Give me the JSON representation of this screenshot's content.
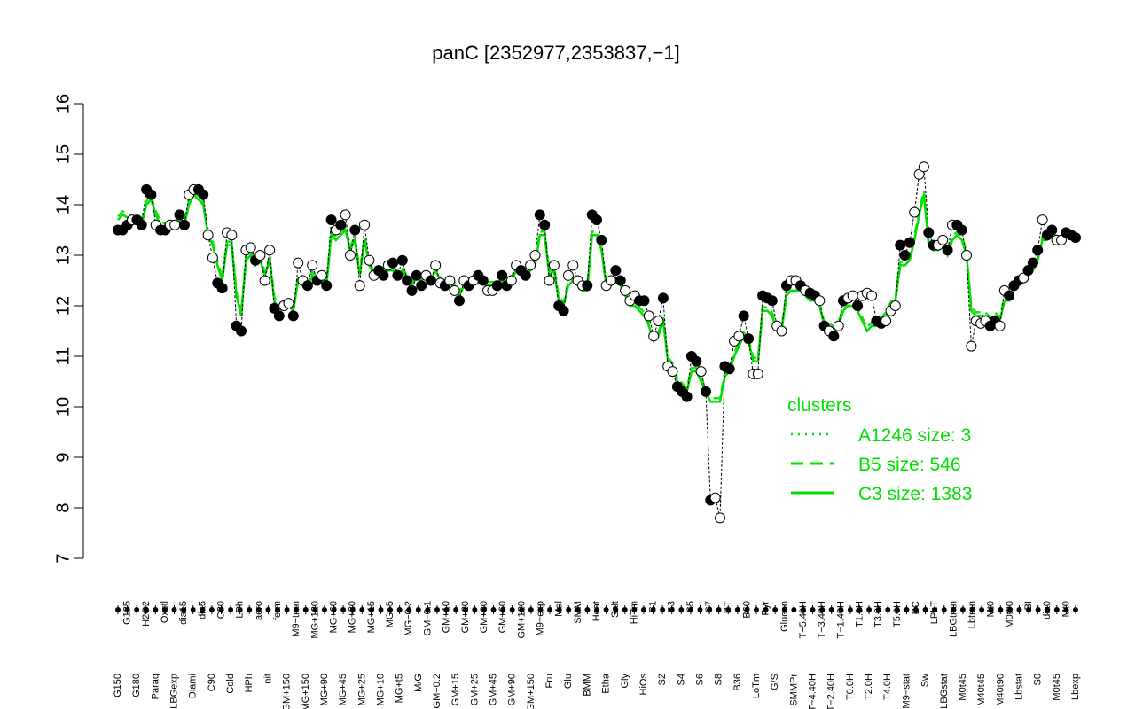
{
  "chart_data": {
    "type": "line",
    "title": "panC [2352977,2353837,−1]",
    "ylim": [
      7,
      16
    ],
    "yticks": [
      7,
      8,
      9,
      10,
      11,
      12,
      13,
      14,
      15,
      16
    ],
    "xlabels_top": [
      "G150",
      "G135",
      "G180",
      "H2O2",
      "Paraq",
      "Oxctl",
      "LBGexp",
      "dia15",
      "Diami",
      "dia5",
      "C90",
      "C30",
      "Cold",
      "LPh",
      "HPh",
      "aero",
      "nit",
      "ferm",
      "GM+150",
      "M9−tran",
      "MG+150",
      "MG+120",
      "MG+90",
      "MG+60",
      "MG+45",
      "MG+30",
      "MG+25",
      "MG+15",
      "MG+10",
      "MG+5",
      "MG+t5",
      "MG−0.2",
      "M/G",
      "GM−0.1",
      "GM−0.2",
      "GM+10",
      "GM+15",
      "GM+20",
      "GM+25",
      "GM+30",
      "GM+45",
      "GM+60",
      "GM+90",
      "GM+120",
      "GM+150",
      "M9−exp",
      "Fru",
      "Mal",
      "Glu",
      "SMM",
      "BMM",
      "Heat",
      "Etha",
      "Salt",
      "Gly",
      "HiTm",
      "HiOs",
      "S1",
      "S2",
      "S3",
      "S4",
      "S5",
      "S6",
      "S7",
      "S8",
      "BT",
      "B36",
      "B60",
      "LoTm",
      "Pyr",
      "G/S",
      "Glucon",
      "SMMPr",
      "T−5.40H",
      "T−4.40H",
      "T−3.40H",
      "T−2.40H",
      "T−1.40H",
      "T0.0H",
      "T1.0H",
      "T2.0H",
      "T3.0H",
      "T4.0H",
      "T5.0H",
      "M9−stat",
      "BC",
      "Sw",
      "LPhT",
      "LBGstat",
      "LBGtran",
      "M0t45",
      "Lbtran",
      "M40t45",
      "Mt0",
      "M40t90",
      "M0t90",
      "Lbstat",
      "BI",
      "S0",
      "dia0",
      "M0t45",
      "Mt0",
      "Lbexp"
    ],
    "series": [
      {
        "name": "A1246 size: 3",
        "style": "dotted",
        "color": "#00e000"
      },
      {
        "name": "B5 size: 546",
        "style": "dashed",
        "color": "#00e000"
      },
      {
        "name": "C3 size: 1383",
        "style": "solid",
        "color": "#00e000"
      }
    ],
    "points": [
      [
        13.5,
        1
      ],
      [
        13.5,
        1
      ],
      [
        13.6,
        1
      ],
      [
        13.7,
        0
      ],
      [
        13.7,
        1
      ],
      [
        13.6,
        1
      ],
      [
        14.3,
        1
      ],
      [
        14.2,
        1
      ],
      [
        13.6,
        0
      ],
      [
        13.5,
        1
      ],
      [
        13.5,
        1
      ],
      [
        13.6,
        0
      ],
      [
        13.6,
        0
      ],
      [
        13.8,
        1
      ],
      [
        13.6,
        1
      ],
      [
        14.2,
        0
      ],
      [
        14.3,
        0
      ],
      [
        14.3,
        1
      ],
      [
        14.2,
        1
      ],
      [
        13.4,
        0
      ],
      [
        12.95,
        0
      ],
      [
        12.45,
        1
      ],
      [
        12.35,
        1
      ],
      [
        13.45,
        0
      ],
      [
        13.4,
        0
      ],
      [
        11.6,
        1
      ],
      [
        11.5,
        1
      ],
      [
        13.1,
        0
      ],
      [
        13.15,
        0
      ],
      [
        12.9,
        1
      ],
      [
        13.0,
        0
      ],
      [
        12.5,
        0
      ],
      [
        13.1,
        0
      ],
      [
        11.95,
        1
      ],
      [
        11.8,
        1
      ],
      [
        12.0,
        0
      ],
      [
        12.05,
        0
      ],
      [
        11.8,
        1
      ],
      [
        12.85,
        0
      ],
      [
        12.5,
        0
      ],
      [
        12.4,
        1
      ],
      [
        12.8,
        0
      ],
      [
        12.5,
        1
      ],
      [
        12.6,
        0
      ],
      [
        12.4,
        1
      ],
      [
        13.7,
        1
      ],
      [
        13.5,
        0
      ],
      [
        13.6,
        1
      ],
      [
        13.8,
        0
      ],
      [
        13.0,
        0
      ],
      [
        13.5,
        1
      ],
      [
        12.4,
        0
      ],
      [
        13.6,
        0
      ],
      [
        12.9,
        0
      ],
      [
        12.6,
        0
      ],
      [
        12.7,
        1
      ],
      [
        12.6,
        1
      ],
      [
        12.8,
        0
      ],
      [
        12.85,
        1
      ],
      [
        12.6,
        1
      ],
      [
        12.9,
        1
      ],
      [
        12.5,
        1
      ],
      [
        12.3,
        1
      ],
      [
        12.6,
        1
      ],
      [
        12.4,
        1
      ],
      [
        12.6,
        0
      ],
      [
        12.5,
        1
      ],
      [
        12.8,
        0
      ],
      [
        12.45,
        0
      ],
      [
        12.4,
        1
      ],
      [
        12.5,
        0
      ],
      [
        12.3,
        0
      ],
      [
        12.1,
        1
      ],
      [
        12.5,
        0
      ],
      [
        12.4,
        1
      ],
      [
        12.5,
        0
      ],
      [
        12.6,
        1
      ],
      [
        12.5,
        1
      ],
      [
        12.3,
        0
      ],
      [
        12.3,
        0
      ],
      [
        12.4,
        1
      ],
      [
        12.6,
        1
      ],
      [
        12.4,
        1
      ],
      [
        12.5,
        0
      ],
      [
        12.8,
        0
      ],
      [
        12.7,
        1
      ],
      [
        12.6,
        1
      ],
      [
        12.8,
        0
      ],
      [
        13.0,
        0
      ],
      [
        13.8,
        1
      ],
      [
        13.6,
        1
      ],
      [
        12.5,
        0
      ],
      [
        12.8,
        0
      ],
      [
        12.0,
        1
      ],
      [
        11.9,
        1
      ],
      [
        12.6,
        0
      ],
      [
        12.8,
        0
      ],
      [
        12.5,
        0
      ],
      [
        12.4,
        0
      ],
      [
        12.4,
        1
      ],
      [
        13.8,
        1
      ],
      [
        13.7,
        1
      ],
      [
        13.3,
        1
      ],
      [
        12.4,
        0
      ],
      [
        12.5,
        0
      ],
      [
        12.7,
        1
      ],
      [
        12.5,
        1
      ],
      [
        12.3,
        0
      ],
      [
        12.1,
        0
      ],
      [
        12.2,
        0
      ],
      [
        12.1,
        1
      ],
      [
        12.1,
        1
      ],
      [
        11.8,
        0
      ],
      [
        11.4,
        0
      ],
      [
        11.7,
        0
      ],
      [
        12.15,
        1
      ],
      [
        10.8,
        0
      ],
      [
        10.7,
        0
      ],
      [
        10.4,
        1
      ],
      [
        10.3,
        1
      ],
      [
        10.2,
        1
      ],
      [
        11.0,
        1
      ],
      [
        10.9,
        1
      ],
      [
        10.7,
        0
      ],
      [
        10.3,
        1
      ],
      [
        8.15,
        1
      ],
      [
        8.2,
        0
      ],
      [
        7.8,
        0
      ],
      [
        10.8,
        1
      ],
      [
        10.75,
        1
      ],
      [
        11.3,
        0
      ],
      [
        11.4,
        0
      ],
      [
        11.8,
        1
      ],
      [
        11.35,
        1
      ],
      [
        10.65,
        0
      ],
      [
        10.65,
        0
      ],
      [
        12.2,
        1
      ],
      [
        12.15,
        1
      ],
      [
        12.1,
        1
      ],
      [
        11.6,
        0
      ],
      [
        11.5,
        0
      ],
      [
        12.4,
        1
      ],
      [
        12.5,
        0
      ],
      [
        12.5,
        0
      ],
      [
        12.4,
        1
      ],
      [
        12.3,
        0
      ],
      [
        12.25,
        1
      ],
      [
        12.2,
        1
      ],
      [
        12.1,
        0
      ],
      [
        11.6,
        1
      ],
      [
        11.5,
        0
      ],
      [
        11.4,
        1
      ],
      [
        11.6,
        0
      ],
      [
        12.1,
        1
      ],
      [
        12.15,
        0
      ],
      [
        12.2,
        0
      ],
      [
        12.0,
        1
      ],
      [
        12.2,
        0
      ],
      [
        12.25,
        0
      ],
      [
        12.2,
        0
      ],
      [
        11.7,
        1
      ],
      [
        11.65,
        1
      ],
      [
        11.7,
        0
      ],
      [
        11.9,
        0
      ],
      [
        12.0,
        0
      ],
      [
        13.2,
        1
      ],
      [
        13.0,
        1
      ],
      [
        13.25,
        1
      ],
      [
        13.85,
        0
      ],
      [
        14.6,
        0
      ],
      [
        14.75,
        0
      ],
      [
        13.45,
        1
      ],
      [
        13.2,
        1
      ],
      [
        13.2,
        0
      ],
      [
        13.3,
        0
      ],
      [
        13.1,
        1
      ],
      [
        13.6,
        0
      ],
      [
        13.6,
        1
      ],
      [
        13.5,
        1
      ],
      [
        13.0,
        0
      ],
      [
        11.2,
        0
      ],
      [
        11.7,
        0
      ],
      [
        11.65,
        0
      ],
      [
        11.7,
        0
      ],
      [
        11.6,
        1
      ],
      [
        11.7,
        1
      ],
      [
        11.6,
        0
      ],
      [
        12.3,
        0
      ],
      [
        12.2,
        1
      ],
      [
        12.4,
        1
      ],
      [
        12.5,
        1
      ],
      [
        12.55,
        0
      ],
      [
        12.7,
        1
      ],
      [
        12.85,
        1
      ],
      [
        13.1,
        1
      ],
      [
        13.7,
        0
      ],
      [
        13.4,
        1
      ],
      [
        13.5,
        1
      ],
      [
        13.3,
        0
      ],
      [
        13.3,
        0
      ],
      [
        13.45,
        1
      ],
      [
        13.4,
        1
      ],
      [
        13.35,
        1
      ]
    ],
    "trend": [
      13.7,
      13.8,
      13.75,
      13.7,
      13.65,
      13.6,
      14.0,
      14.1,
      13.8,
      13.6,
      13.55,
      13.6,
      13.6,
      13.7,
      13.6,
      14.0,
      14.2,
      14.1,
      14.0,
      13.4,
      13.2,
      12.8,
      12.5,
      13.2,
      13.2,
      12.2,
      11.8,
      12.9,
      13.0,
      12.8,
      12.9,
      12.6,
      12.9,
      12.1,
      11.9,
      12.0,
      12.0,
      11.9,
      12.5,
      12.4,
      12.4,
      12.6,
      12.5,
      12.5,
      12.4,
      13.4,
      13.3,
      13.4,
      13.5,
      13.1,
      13.3,
      12.6,
      13.3,
      12.8,
      12.6,
      12.6,
      12.6,
      12.7,
      12.7,
      12.6,
      12.7,
      12.5,
      12.4,
      12.6,
      12.5,
      12.6,
      12.5,
      12.7,
      12.5,
      12.4,
      12.5,
      12.4,
      12.2,
      12.4,
      12.4,
      12.5,
      12.5,
      12.5,
      12.4,
      12.4,
      12.4,
      12.5,
      12.4,
      12.5,
      12.7,
      12.6,
      12.6,
      12.7,
      12.8,
      13.4,
      13.4,
      12.6,
      12.7,
      12.1,
      12.0,
      12.4,
      12.5,
      12.4,
      12.3,
      12.3,
      13.4,
      13.4,
      13.1,
      12.4,
      12.4,
      12.5,
      12.4,
      12.2,
      12.0,
      12.0,
      11.9,
      11.8,
      11.6,
      11.3,
      11.4,
      11.7,
      10.9,
      10.8,
      10.5,
      10.4,
      10.3,
      10.7,
      10.7,
      10.5,
      10.3,
      10.1,
      10.1,
      10.1,
      10.6,
      10.7,
      11.0,
      11.2,
      11.4,
      11.3,
      10.9,
      10.9,
      11.9,
      11.9,
      11.8,
      11.5,
      11.5,
      12.2,
      12.3,
      12.3,
      12.3,
      12.2,
      12.1,
      12.1,
      12.0,
      11.6,
      11.6,
      11.5,
      11.6,
      11.9,
      12.0,
      12.0,
      11.9,
      11.7,
      11.5,
      11.6,
      11.6,
      11.7,
      11.8,
      12.0,
      12.1,
      12.8,
      12.8,
      12.9,
      13.3,
      13.8,
      14.2,
      13.2,
      13.1,
      13.1,
      13.2,
      13.0,
      13.3,
      13.4,
      13.3,
      13.0,
      11.9,
      11.8,
      11.8,
      11.8,
      11.7,
      11.8,
      11.7,
      12.1,
      12.1,
      12.3,
      12.4,
      12.5,
      12.6,
      12.7,
      12.9,
      13.3,
      13.3,
      13.4,
      13.3,
      13.3,
      13.4,
      13.4,
      13.4
    ],
    "legend_title": "clusters",
    "legend_position": "bottom-right",
    "grid": false
  }
}
